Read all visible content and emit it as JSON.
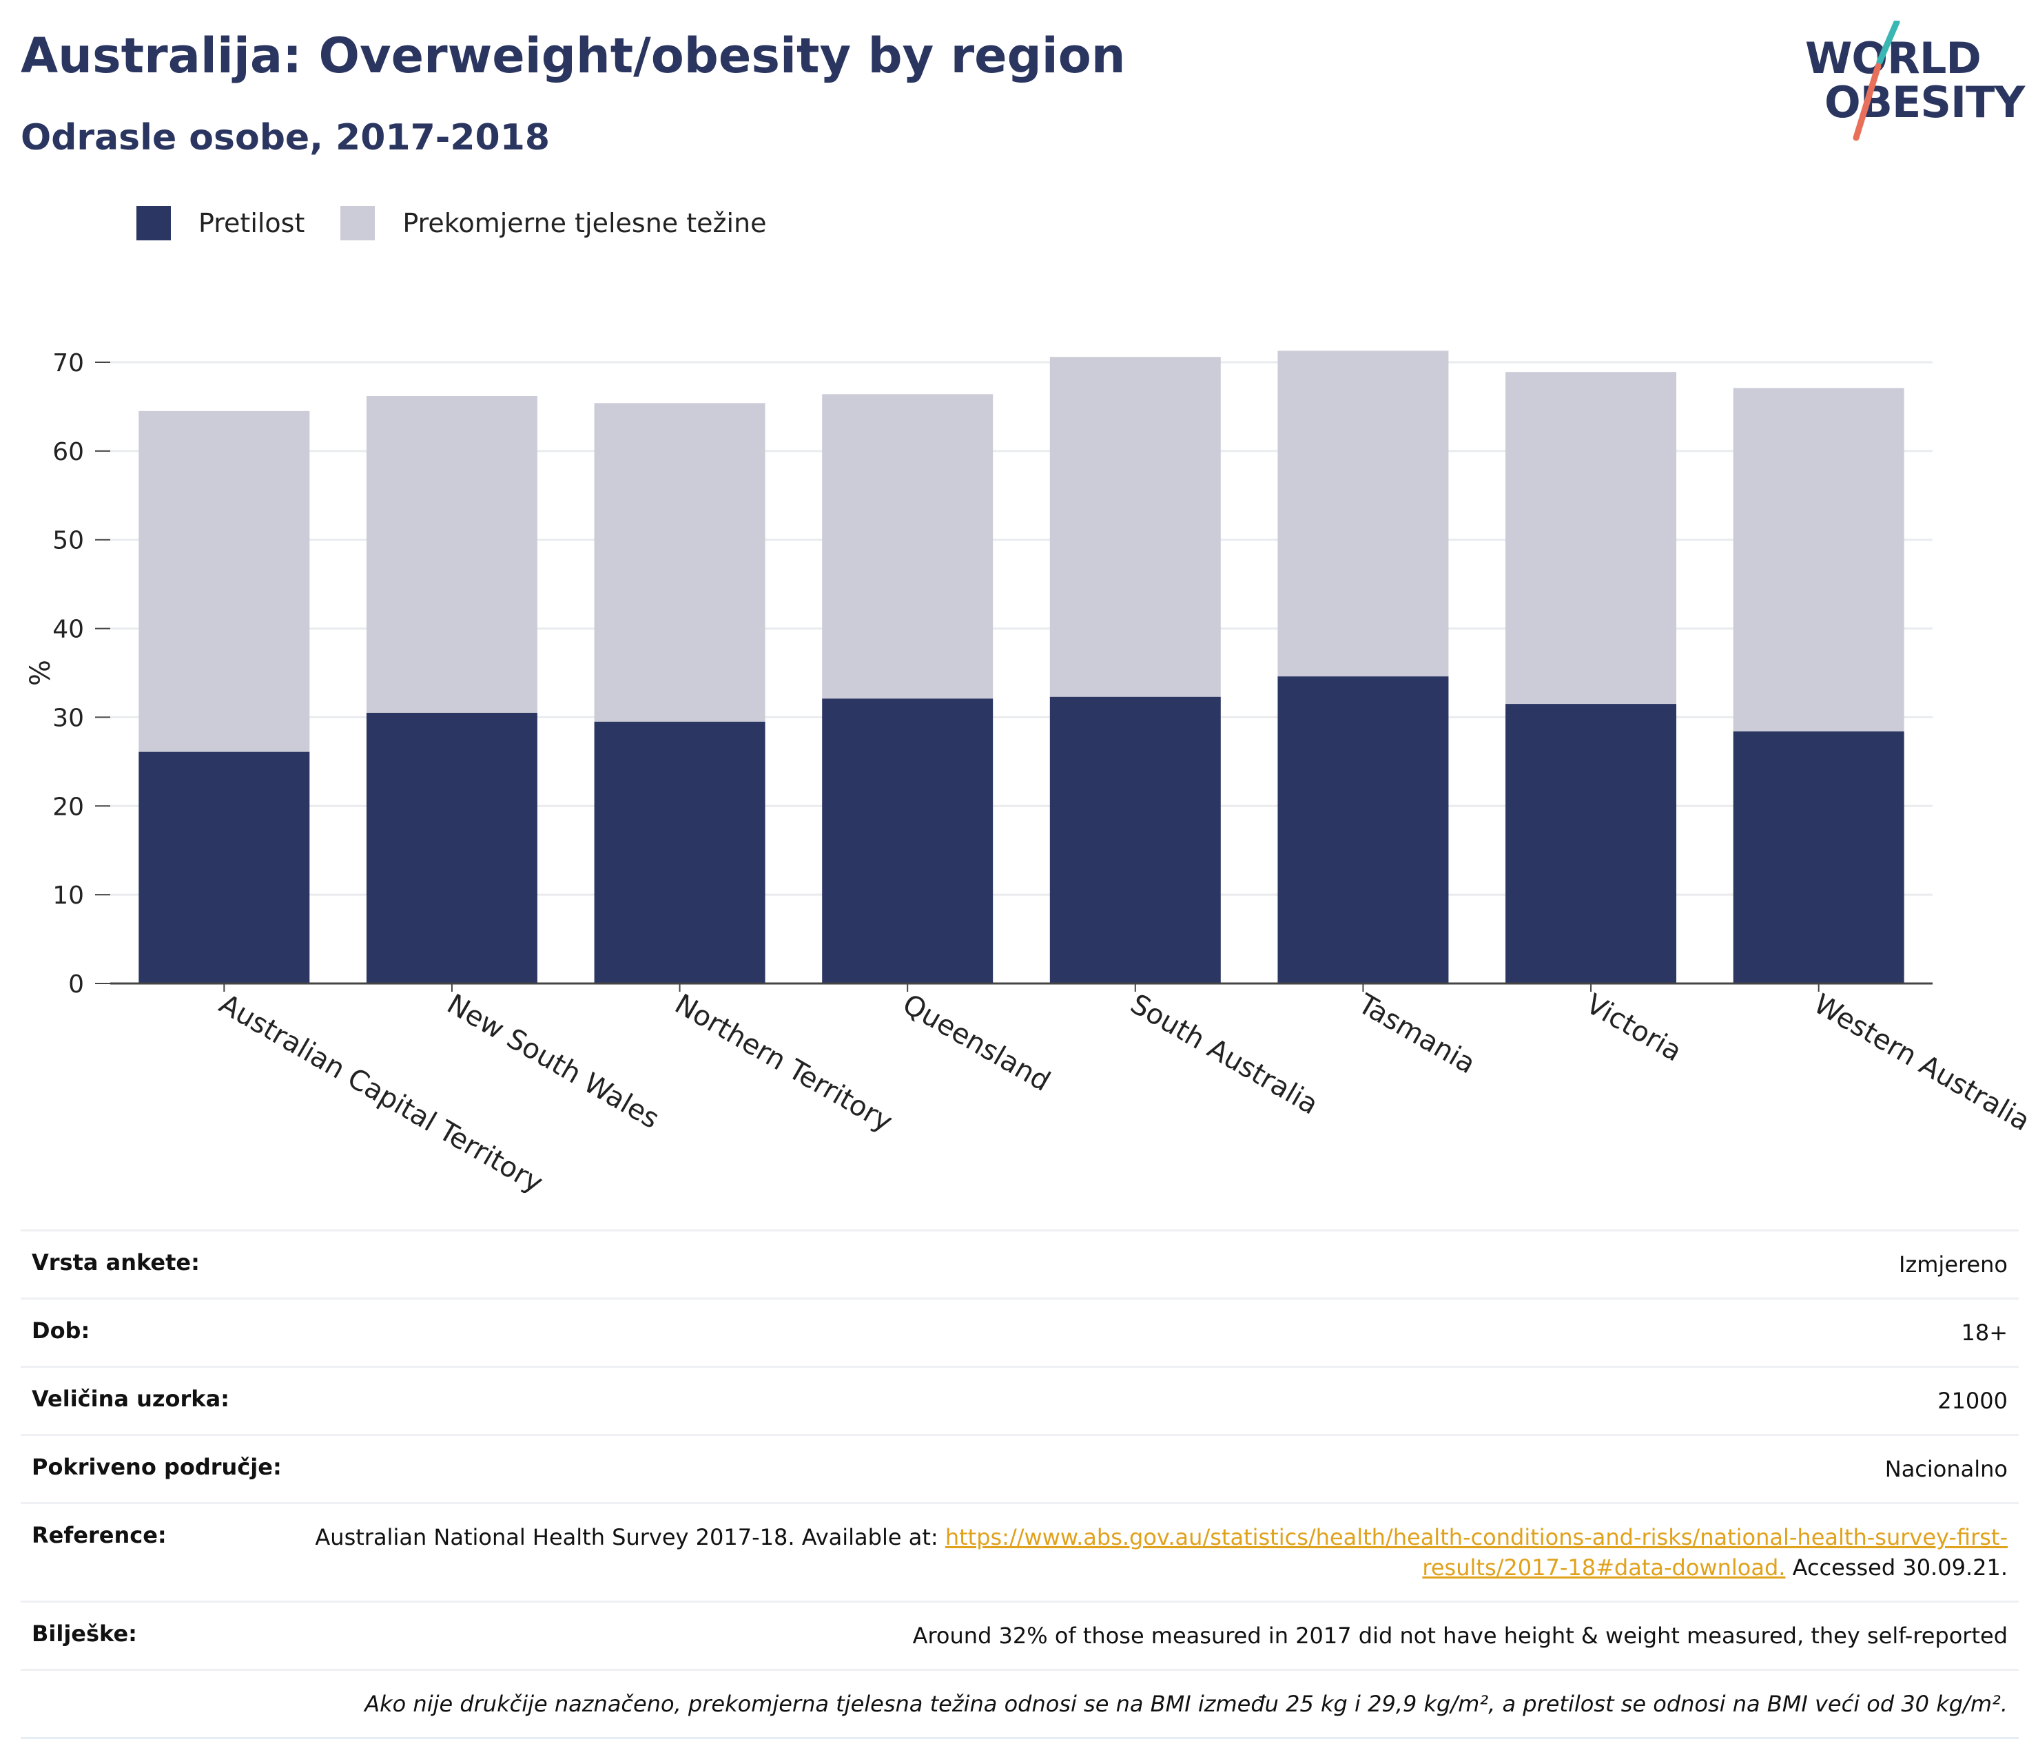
{
  "header": {
    "title": "Australija: Overweight/obesity by region",
    "subtitle": "Odrasle osobe, 2017-2018"
  },
  "logo": {
    "line1": "WORLD",
    "line2": "OBESITY"
  },
  "colors": {
    "obesity": "#2b3663",
    "overweight": "#cbccd7",
    "accent_teal": "#3ab6b3",
    "accent_coral": "#e8705a",
    "link": "#e0a11b"
  },
  "legend": {
    "obesity_label": "Pretilost",
    "overweight_label": "Prekomjerne tjelesne težine"
  },
  "chart_data": {
    "type": "bar",
    "stacked": true,
    "ylabel": "%",
    "ylim": [
      0,
      70
    ],
    "yticks": [
      0,
      10,
      20,
      30,
      40,
      50,
      60,
      70
    ],
    "grid": true,
    "legend_position": "top-left",
    "categories": [
      "Australian Capital Territory",
      "New South Wales",
      "Northern Territory",
      "Queensland",
      "South Australia",
      "Tasmania",
      "Victoria",
      "Western Australia"
    ],
    "series": [
      {
        "name": "Pretilost",
        "values": [
          26.1,
          30.5,
          29.5,
          32.1,
          32.3,
          34.6,
          31.5,
          28.4
        ]
      },
      {
        "name": "Prekomjerne tjelesne težine",
        "values": [
          38.4,
          35.7,
          35.9,
          34.3,
          38.3,
          36.7,
          37.4,
          38.7
        ]
      }
    ]
  },
  "info": {
    "survey_type_label": "Vrsta ankete:",
    "survey_type_value": "Izmjereno",
    "age_label": "Dob:",
    "age_value": "18+",
    "sample_label": "Veličina uzorka:",
    "sample_value": "21000",
    "area_label": "Pokriveno područje:",
    "area_value": "Nacionalno",
    "reference_label": "Reference:",
    "reference_text": "Australian National Health Survey 2017-18. Available at: ",
    "reference_link": "https://www.abs.gov.au/statistics/health/health-conditions-and-risks/national-health-survey-first-results/2017-18#data-download.",
    "reference_accessed": " Accessed 30.09.21.",
    "notes_label": "Bilješke:",
    "notes_value": "Around 32% of those measured in 2017 did not have height & weight measured, they self-reported",
    "definition_note": "Ako nije drukčije naznačeno, prekomjerna tjelesna težina odnosi se na BMI između 25 kg i 29,9 kg/m², a pretilost se odnosi na BMI veći od 30 kg/m²."
  }
}
